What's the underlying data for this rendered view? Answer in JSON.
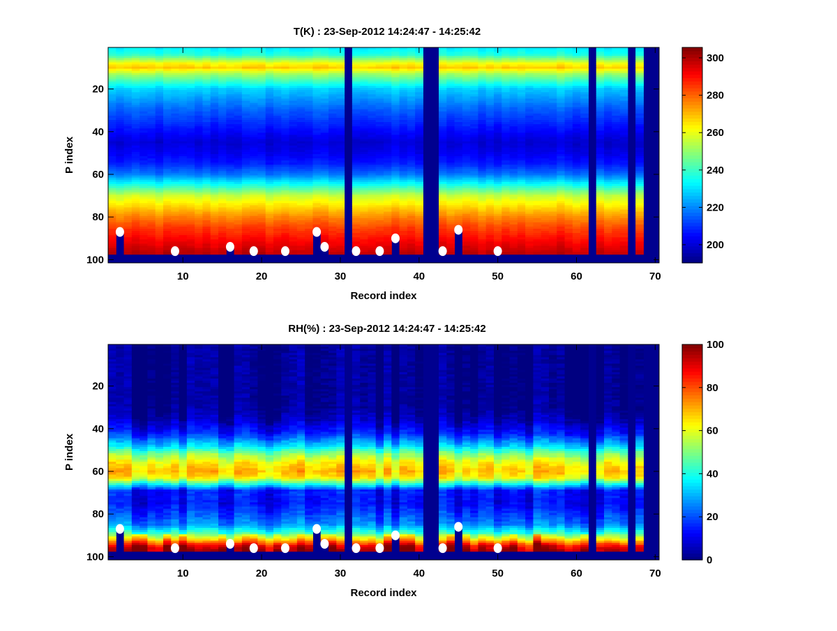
{
  "chart_data": [
    {
      "type": "heatmap",
      "title": "T(K) : 23-Sep-2012 14:24:47 - 14:25:42",
      "xlabel": "Record index",
      "ylabel": "P index",
      "xlim": [
        0.5,
        70.5
      ],
      "ylim": [
        0.5,
        101.5
      ],
      "y_reversed": true,
      "xticks": [
        10,
        20,
        30,
        40,
        50,
        60,
        70
      ],
      "yticks": [
        20,
        40,
        60,
        80,
        100
      ],
      "n_records": 70,
      "n_levels": 101,
      "clim": [
        190.3,
        305.6
      ],
      "colormap": "jet",
      "colorbar_ticks": [
        200,
        220,
        240,
        260,
        280,
        300
      ],
      "profile_levels": [
        1,
        4,
        8,
        10,
        13,
        20,
        30,
        40,
        45,
        50,
        55,
        60,
        65,
        70,
        75,
        80,
        85,
        90,
        95,
        98
      ],
      "profile_values": [
        232,
        238,
        262,
        268,
        252,
        228,
        215,
        205,
        200,
        203,
        208,
        218,
        236,
        256,
        266,
        276,
        284,
        290,
        296,
        300
      ],
      "noise_amplitude": 4
    },
    {
      "type": "heatmap",
      "title": "RH(%) : 23-Sep-2012 14:24:47 - 14:25:42",
      "xlabel": "Record index",
      "ylabel": "P index",
      "xlim": [
        0.5,
        70.5
      ],
      "ylim": [
        0.5,
        101.5
      ],
      "y_reversed": true,
      "xticks": [
        10,
        20,
        30,
        40,
        50,
        60,
        70
      ],
      "yticks": [
        20,
        40,
        60,
        80,
        100
      ],
      "n_records": 70,
      "n_levels": 101,
      "clim": [
        0,
        100
      ],
      "colormap": "jet",
      "colorbar_ticks": [
        0,
        20,
        40,
        60,
        80,
        100
      ],
      "profile_levels": [
        1,
        30,
        36,
        42,
        48,
        52,
        56,
        60,
        63,
        66,
        69,
        75,
        80,
        85,
        89,
        92,
        95,
        98
      ],
      "profile_values": [
        0,
        0,
        5,
        14,
        32,
        50,
        62,
        68,
        62,
        38,
        14,
        12,
        18,
        25,
        42,
        62,
        85,
        95
      ],
      "noise_amplitude": 10
    }
  ],
  "missing_records": [
    31,
    41,
    42,
    62,
    67,
    69,
    70
  ],
  "missing_below_level": 98,
  "markers": [
    {
      "record": 2,
      "level": 87
    },
    {
      "record": 9,
      "level": 96
    },
    {
      "record": 16,
      "level": 94
    },
    {
      "record": 19,
      "level": 96
    },
    {
      "record": 23,
      "level": 96
    },
    {
      "record": 27,
      "level": 87
    },
    {
      "record": 28,
      "level": 94
    },
    {
      "record": 32,
      "level": 96
    },
    {
      "record": 35,
      "level": 96
    },
    {
      "record": 37,
      "level": 90
    },
    {
      "record": 43,
      "level": 96
    },
    {
      "record": 45,
      "level": 86
    },
    {
      "record": 50,
      "level": 96
    }
  ],
  "missing_color": "#00008f",
  "marker_color": "#ffffff"
}
